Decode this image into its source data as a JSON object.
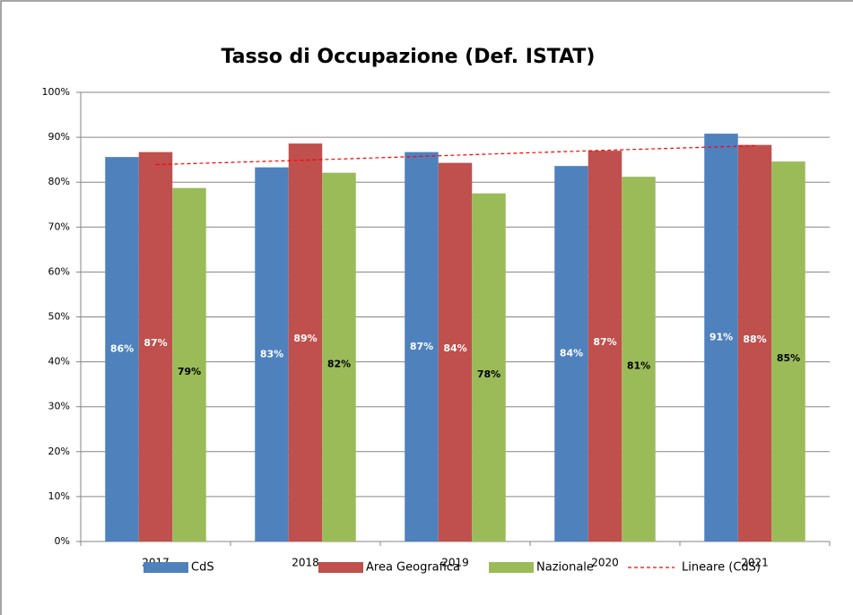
{
  "chart_data": {
    "type": "bar",
    "title": "Tasso di Occupazione (Def. ISTAT)",
    "categories": [
      "2017",
      "2018",
      "2019",
      "2020",
      "2021"
    ],
    "series": [
      {
        "name": "CdS",
        "color": "#4f81bd",
        "label_color": "#ffffff",
        "values": [
          85.6,
          83.3,
          86.7,
          83.6,
          90.8
        ],
        "value_labels": [
          "86%",
          "83%",
          "87%",
          "84%",
          "91%"
        ]
      },
      {
        "name": "Area Geografica",
        "color": "#c0504d",
        "label_color": "#ffffff",
        "values": [
          86.7,
          88.6,
          84.3,
          87.0,
          88.3
        ],
        "value_labels": [
          "87%",
          "89%",
          "84%",
          "87%",
          "88%"
        ]
      },
      {
        "name": "Nazionale",
        "color": "#9bbb59",
        "label_color": "#000000",
        "values": [
          78.7,
          82.1,
          77.5,
          81.2,
          84.6
        ],
        "value_labels": [
          "79%",
          "82%",
          "78%",
          "81%",
          "85%"
        ]
      },
      {
        "name": "Lineare (CdS)",
        "color": "#ff0000",
        "style": "dashed",
        "values": [
          83.9,
          84.9,
          86.0,
          87.1,
          88.1
        ]
      }
    ],
    "ylim": [
      0,
      100
    ],
    "yticks": [
      {
        "value": 0,
        "label": "0%"
      },
      {
        "value": 10,
        "label": "10%"
      },
      {
        "value": 20,
        "label": "20%"
      },
      {
        "value": 30,
        "label": "30%"
      },
      {
        "value": 40,
        "label": "40%"
      },
      {
        "value": 50,
        "label": "50%"
      },
      {
        "value": 60,
        "label": "60%"
      },
      {
        "value": 70,
        "label": "70%"
      },
      {
        "value": 80,
        "label": "80%"
      },
      {
        "value": 90,
        "label": "90%"
      },
      {
        "value": 100,
        "label": "100%"
      }
    ],
    "grid": true,
    "legend": "bottom"
  }
}
